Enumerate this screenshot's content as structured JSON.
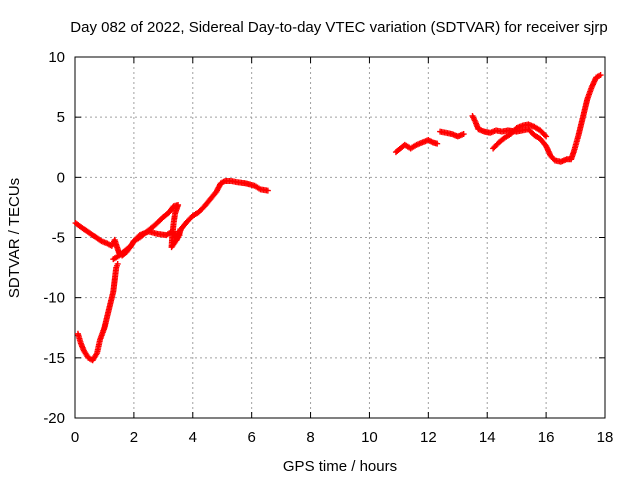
{
  "chart_data": {
    "type": "scatter",
    "title": "Day 082 of 2022, Sidereal Day-to-day VTEC variation (SDTVAR) for receiver sjrp",
    "xlabel": "GPS time / hours",
    "ylabel": "SDTVAR / TECUs",
    "xlim": [
      0,
      18
    ],
    "ylim": [
      -20,
      10
    ],
    "xticks": [
      "0",
      "2",
      "4",
      "6",
      "8",
      "10",
      "12",
      "14",
      "16",
      "18"
    ],
    "yticks": [
      "10",
      "5",
      "0",
      "-5",
      "-10",
      "-15",
      "-20"
    ],
    "grid": true,
    "marker": "+",
    "series": [
      {
        "name": "sjrp",
        "color": "#ff0000",
        "segments": [
          [
            [
              0.02,
              -3.8
            ],
            [
              0.3,
              -4.3
            ],
            [
              0.6,
              -4.8
            ],
            [
              0.9,
              -5.3
            ],
            [
              1.1,
              -5.5
            ],
            [
              1.25,
              -5.7
            ],
            [
              1.35,
              -5.2
            ],
            [
              1.4,
              -5.6
            ],
            [
              1.5,
              -6.3
            ],
            [
              1.6,
              -6.5
            ],
            [
              1.75,
              -6.2
            ],
            [
              1.9,
              -5.7
            ],
            [
              2.0,
              -5.3
            ],
            [
              2.2,
              -4.8
            ],
            [
              2.5,
              -4.5
            ],
            [
              2.8,
              -4.7
            ],
            [
              3.1,
              -4.8
            ],
            [
              3.3,
              -4.5
            ],
            [
              3.4,
              -4.7
            ],
            [
              3.45,
              -5.2
            ],
            [
              3.5,
              -4.5
            ],
            [
              3.55,
              -4.8
            ]
          ],
          [
            [
              0.1,
              -13.0
            ],
            [
              0.2,
              -13.8
            ],
            [
              0.3,
              -14.4
            ],
            [
              0.45,
              -15.0
            ],
            [
              0.6,
              -15.2
            ],
            [
              0.75,
              -14.6
            ],
            [
              0.85,
              -13.5
            ],
            [
              1.0,
              -12.5
            ],
            [
              1.1,
              -11.5
            ],
            [
              1.2,
              -10.5
            ],
            [
              1.3,
              -9.5
            ],
            [
              1.35,
              -8.5
            ],
            [
              1.4,
              -7.5
            ],
            [
              1.45,
              -7.2
            ]
          ],
          [
            [
              1.3,
              -6.8
            ],
            [
              1.5,
              -6.5
            ],
            [
              1.7,
              -6.1
            ],
            [
              1.9,
              -5.7
            ],
            [
              2.0,
              -5.3
            ],
            [
              2.2,
              -5.0
            ],
            [
              2.4,
              -4.6
            ],
            [
              2.7,
              -4.0
            ],
            [
              3.0,
              -3.3
            ],
            [
              3.2,
              -2.9
            ],
            [
              3.35,
              -2.4
            ],
            [
              3.5,
              -2.3
            ],
            [
              3.4,
              -3.0
            ],
            [
              3.35,
              -3.8
            ],
            [
              3.3,
              -5.0
            ],
            [
              3.28,
              -5.8
            ],
            [
              3.5,
              -5.0
            ],
            [
              3.6,
              -4.3
            ],
            [
              3.8,
              -3.7
            ],
            [
              4.0,
              -3.2
            ],
            [
              4.2,
              -2.9
            ],
            [
              4.4,
              -2.4
            ],
            [
              4.6,
              -1.8
            ],
            [
              4.8,
              -1.2
            ],
            [
              4.95,
              -0.5
            ],
            [
              5.1,
              -0.3
            ],
            [
              5.3,
              -0.3
            ],
            [
              5.5,
              -0.4
            ],
            [
              5.8,
              -0.5
            ],
            [
              6.1,
              -0.7
            ],
            [
              6.3,
              -1.0
            ],
            [
              6.55,
              -1.1
            ]
          ],
          [
            [
              10.9,
              2.1
            ],
            [
              11.2,
              2.7
            ],
            [
              11.4,
              2.4
            ],
            [
              11.6,
              2.7
            ],
            [
              11.8,
              2.9
            ],
            [
              12.0,
              3.1
            ],
            [
              12.15,
              2.9
            ],
            [
              12.3,
              2.8
            ]
          ],
          [
            [
              12.4,
              3.8
            ],
            [
              12.6,
              3.7
            ],
            [
              12.8,
              3.6
            ],
            [
              13.0,
              3.4
            ],
            [
              13.2,
              3.6
            ]
          ],
          [
            [
              13.5,
              5.1
            ],
            [
              13.6,
              4.6
            ],
            [
              13.7,
              4.0
            ],
            [
              13.9,
              3.8
            ],
            [
              14.1,
              3.7
            ],
            [
              14.3,
              3.9
            ],
            [
              14.5,
              3.8
            ],
            [
              14.7,
              3.9
            ],
            [
              15.0,
              3.8
            ],
            [
              15.2,
              3.9
            ],
            [
              15.4,
              4.0
            ],
            [
              15.6,
              3.5
            ],
            [
              15.8,
              3.2
            ],
            [
              16.0,
              2.6
            ],
            [
              16.15,
              1.8
            ],
            [
              16.3,
              1.4
            ],
            [
              16.5,
              1.3
            ],
            [
              16.7,
              1.5
            ],
            [
              16.85,
              1.5
            ],
            [
              16.95,
              2.2
            ],
            [
              17.1,
              3.5
            ],
            [
              17.25,
              5.0
            ],
            [
              17.4,
              6.5
            ],
            [
              17.55,
              7.5
            ],
            [
              17.7,
              8.3
            ],
            [
              17.85,
              8.5
            ]
          ],
          [
            [
              14.2,
              2.4
            ],
            [
              14.4,
              2.9
            ],
            [
              14.6,
              3.3
            ],
            [
              14.8,
              3.6
            ],
            [
              15.0,
              4.1
            ],
            [
              15.2,
              4.3
            ],
            [
              15.4,
              4.4
            ],
            [
              15.6,
              4.2
            ],
            [
              15.8,
              3.9
            ],
            [
              16.0,
              3.4
            ]
          ]
        ]
      }
    ]
  }
}
